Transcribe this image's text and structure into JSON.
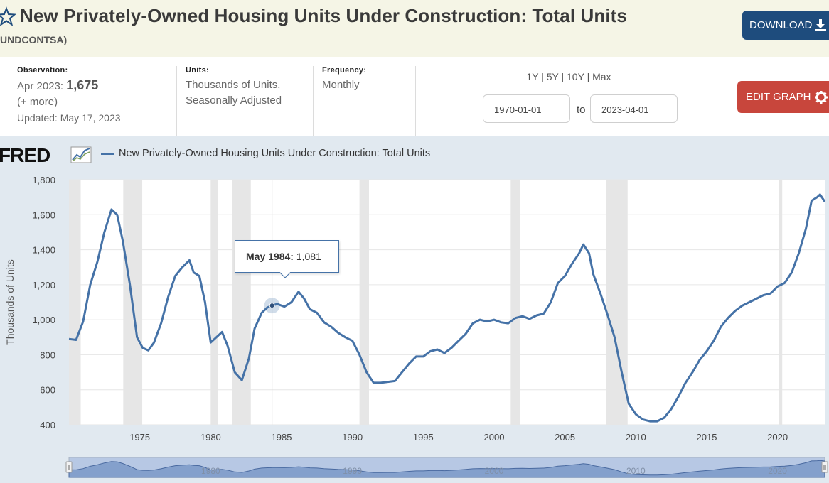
{
  "header": {
    "title": "New Privately-Owned Housing Units Under Construction: Total Units",
    "series_id": "UNDCONTSA)",
    "download_label": "DOWNLOAD",
    "edit_label": "EDIT GRAPH"
  },
  "meta": {
    "observation_label": "Observation:",
    "observation_period": "Apr 2023:",
    "observation_value": "1,675",
    "more": "(+ more)",
    "updated": "Updated: May 17, 2023",
    "units_label": "Units:",
    "units_line1": "Thousands of Units,",
    "units_line2": "Seasonally Adjusted",
    "frequency_label": "Frequency:",
    "frequency_value": "Monthly"
  },
  "range": {
    "r1y": "1Y",
    "r5y": "5Y",
    "r10y": "10Y",
    "rmax": "Max",
    "sep": "|",
    "start": "1970-01-01",
    "to": "to",
    "end": "2023-04-01"
  },
  "logo_text": "FRED",
  "tooltip": {
    "date": "May 1984:",
    "value": "1,081"
  },
  "colors": {
    "line": "#4572a7",
    "recession": "#e6e6e6",
    "accent_download": "#1e4c7d",
    "accent_edit": "#c8463c"
  },
  "chart_data": {
    "type": "line",
    "title": "New Privately-Owned Housing Units Under Construction: Total Units",
    "xlabel": "",
    "ylabel": "Thousands of Units",
    "xlim": [
      1970.0,
      2023.33
    ],
    "ylim": [
      400,
      1800
    ],
    "yticks": [
      400,
      600,
      800,
      1000,
      1200,
      1400,
      1600,
      1800
    ],
    "ytick_labels": [
      "400",
      "600",
      "800",
      "1,000",
      "1,200",
      "1,400",
      "1,600",
      "1,800"
    ],
    "xticks": [
      1975,
      1980,
      1985,
      1990,
      1995,
      2000,
      2005,
      2010,
      2015,
      2020
    ],
    "xtick_labels": [
      "1975",
      "1980",
      "1985",
      "1990",
      "1995",
      "2000",
      "2005",
      "2010",
      "2015",
      "2020"
    ],
    "navigator_labels": [
      "1980",
      "1990",
      "2000",
      "2010",
      "2020"
    ],
    "recessions": [
      [
        1969.92,
        1970.83
      ],
      [
        1973.83,
        1975.17
      ],
      [
        1980.0,
        1980.5
      ],
      [
        1981.5,
        1982.83
      ],
      [
        1990.5,
        1991.17
      ],
      [
        2001.17,
        2001.83
      ],
      [
        2007.92,
        2009.42
      ],
      [
        2020.08,
        2020.33
      ]
    ],
    "highlight": {
      "x": 1984.33,
      "y": 1081
    },
    "series": [
      {
        "name": "New Privately-Owned Housing Units Under Construction: Total Units",
        "x": [
          1970.0,
          1970.5,
          1971.0,
          1971.5,
          1972.0,
          1972.5,
          1973.0,
          1973.4,
          1973.8,
          1974.3,
          1974.8,
          1975.2,
          1975.6,
          1976.0,
          1976.5,
          1977.0,
          1977.5,
          1978.0,
          1978.5,
          1978.8,
          1979.2,
          1979.6,
          1980.0,
          1980.4,
          1980.8,
          1981.2,
          1981.7,
          1982.2,
          1982.7,
          1983.1,
          1983.6,
          1984.0,
          1984.33,
          1984.7,
          1985.2,
          1985.7,
          1986.2,
          1986.6,
          1987.0,
          1987.5,
          1988.0,
          1988.5,
          1989.0,
          1989.5,
          1990.0,
          1990.5,
          1991.0,
          1991.5,
          1992.0,
          1992.5,
          1993.0,
          1993.5,
          1994.0,
          1994.5,
          1995.0,
          1995.5,
          1996.0,
          1996.5,
          1997.0,
          1997.5,
          1998.0,
          1998.5,
          1999.0,
          1999.5,
          2000.0,
          2000.5,
          2001.0,
          2001.5,
          2002.0,
          2002.5,
          2003.0,
          2003.5,
          2004.0,
          2004.5,
          2005.0,
          2005.5,
          2006.0,
          2006.3,
          2006.7,
          2007.0,
          2007.5,
          2008.0,
          2008.5,
          2009.0,
          2009.5,
          2010.0,
          2010.5,
          2011.0,
          2011.5,
          2012.0,
          2012.5,
          2013.0,
          2013.5,
          2014.0,
          2014.5,
          2015.0,
          2015.5,
          2016.0,
          2016.5,
          2017.0,
          2017.5,
          2018.0,
          2018.5,
          2019.0,
          2019.5,
          2020.0,
          2020.5,
          2021.0,
          2021.5,
          2022.0,
          2022.4,
          2022.8,
          2023.0,
          2023.33
        ],
        "values": [
          890,
          885,
          990,
          1200,
          1330,
          1500,
          1630,
          1600,
          1450,
          1200,
          900,
          840,
          825,
          870,
          980,
          1130,
          1250,
          1300,
          1340,
          1270,
          1250,
          1100,
          870,
          900,
          930,
          850,
          700,
          655,
          780,
          950,
          1040,
          1070,
          1081,
          1090,
          1075,
          1100,
          1160,
          1120,
          1060,
          1040,
          985,
          960,
          925,
          900,
          880,
          800,
          700,
          640,
          640,
          645,
          650,
          700,
          750,
          790,
          790,
          820,
          830,
          810,
          840,
          880,
          920,
          980,
          1000,
          990,
          1000,
          985,
          980,
          1010,
          1020,
          1005,
          1025,
          1035,
          1100,
          1210,
          1250,
          1320,
          1380,
          1430,
          1380,
          1260,
          1150,
          1030,
          900,
          700,
          520,
          460,
          430,
          420,
          420,
          440,
          490,
          560,
          640,
          700,
          770,
          820,
          880,
          960,
          1010,
          1050,
          1080,
          1100,
          1120,
          1140,
          1150,
          1190,
          1210,
          1270,
          1380,
          1520,
          1680,
          1700,
          1715,
          1675
        ]
      }
    ]
  }
}
